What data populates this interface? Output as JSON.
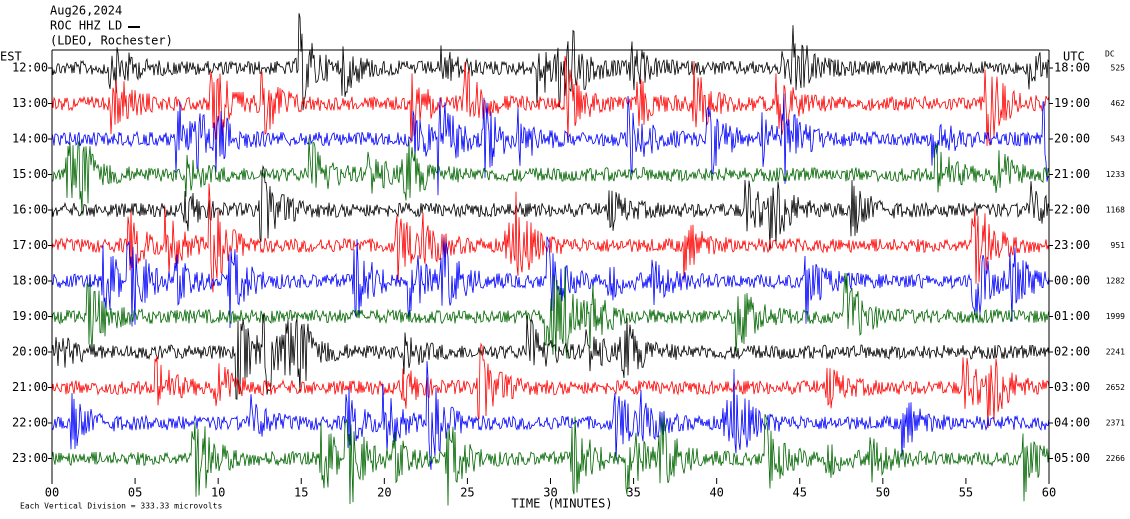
{
  "header": {
    "date": "Aug26,2024",
    "station": "ROC HHZ LD",
    "location": "(LDEO, Rochester)"
  },
  "left_axis": {
    "title": "EST",
    "labels": [
      "12:00",
      "13:00",
      "14:00",
      "15:00",
      "16:00",
      "17:00",
      "18:00",
      "19:00",
      "20:00",
      "21:00",
      "22:00",
      "23:00"
    ]
  },
  "right_axis": {
    "title": "UTC",
    "labels": [
      "18:00",
      "19:00",
      "20:00",
      "21:00",
      "22:00",
      "23:00",
      "00:00",
      "01:00",
      "02:00",
      "03:00",
      "04:00",
      "05:00"
    ]
  },
  "dc": {
    "title": "DC",
    "values": [
      "525",
      "462",
      "543",
      "1233",
      "1168",
      "951",
      "1282",
      "1999",
      "2241",
      "2652",
      "2371",
      "2266"
    ]
  },
  "x_axis": {
    "ticks": [
      "00",
      "05",
      "10",
      "15",
      "20",
      "25",
      "30",
      "35",
      "40",
      "45",
      "50",
      "55",
      "60"
    ],
    "label": "TIME (MINUTES)"
  },
  "footnote": "Each Vertical Division = 333.33 microvolts",
  "trace_colors": [
    "#000000",
    "#ff0000",
    "#0000ff",
    "#006600"
  ]
}
